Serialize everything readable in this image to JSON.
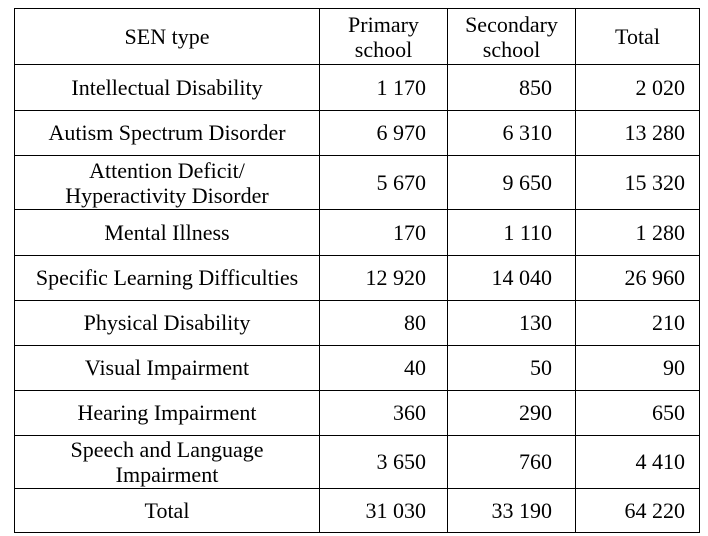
{
  "table": {
    "headers": {
      "sen_type": "SEN type",
      "primary_line1": "Primary",
      "primary_line2": "school",
      "secondary_line1": "Secondary",
      "secondary_line2": "school",
      "total": "Total"
    },
    "rows": [
      {
        "label": "Intellectual Disability",
        "primary": "1 170",
        "secondary": "850",
        "total": "2 020"
      },
      {
        "label": "Autism Spectrum Disorder",
        "primary": "6 970",
        "secondary": "6 310",
        "total": "13 280"
      },
      {
        "label_line1": "Attention Deficit/",
        "label_line2": "Hyperactivity Disorder",
        "primary": "5 670",
        "secondary": "9 650",
        "total": "15 320"
      },
      {
        "label": "Mental Illness",
        "primary": "170",
        "secondary": "1 110",
        "total": "1 280"
      },
      {
        "label": "Specific Learning Difficulties",
        "primary": "12 920",
        "secondary": "14 040",
        "total": "26 960"
      },
      {
        "label": "Physical Disability",
        "primary": "80",
        "secondary": "130",
        "total": "210"
      },
      {
        "label": "Visual Impairment",
        "primary": "40",
        "secondary": "50",
        "total": "90"
      },
      {
        "label": "Hearing Impairment",
        "primary": "360",
        "secondary": "290",
        "total": "650"
      },
      {
        "label_line1": "Speech and Language",
        "label_line2": "Impairment",
        "primary": "3 650",
        "secondary": "760",
        "total": "4 410"
      },
      {
        "label": "Total",
        "primary": "31 030",
        "secondary": "33 190",
        "total": "64 220"
      }
    ]
  }
}
